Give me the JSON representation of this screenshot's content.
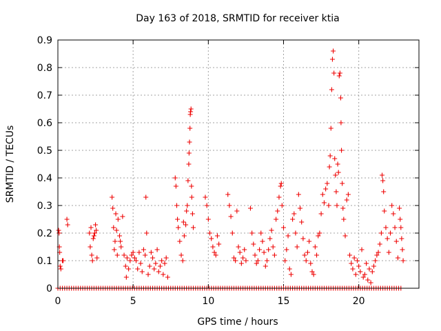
{
  "chart_data": {
    "type": "scatter",
    "title": "Day 163 of 2018, SRMTID for receiver ktia",
    "xlabel": "GPS time / hours",
    "ylabel": "SRMTID / TECUs",
    "xlim": [
      0,
      24
    ],
    "ylim": [
      0,
      0.9
    ],
    "x_ticks": [
      0,
      5,
      10,
      15,
      20
    ],
    "x_tick_labels": [
      "0",
      "5",
      "10",
      "15",
      "20"
    ],
    "y_ticks": [
      0,
      0.1,
      0.2,
      0.3,
      0.4,
      0.5,
      0.6,
      0.7,
      0.8,
      0.9
    ],
    "y_tick_labels": [
      "0",
      "0.1",
      "0.2",
      "0.3",
      "0.4",
      "0.5",
      "0.6",
      "0.7",
      "0.8",
      "0.9"
    ],
    "grid": true,
    "marker": "+",
    "color": "#ee0000",
    "series": [
      {
        "name": "SRMTID",
        "points": [
          [
            0.05,
            0.21
          ],
          [
            0.08,
            0.2
          ],
          [
            0.1,
            0.15
          ],
          [
            0.12,
            0.13
          ],
          [
            0.15,
            0.08
          ],
          [
            0.2,
            0.07
          ],
          [
            0.3,
            0.1
          ],
          [
            0.35,
            0.1
          ],
          [
            0.6,
            0.25
          ],
          [
            0.65,
            0.23
          ],
          [
            2.1,
            0.2
          ],
          [
            2.15,
            0.15
          ],
          [
            2.2,
            0.22
          ],
          [
            2.25,
            0.12
          ],
          [
            2.3,
            0.1
          ],
          [
            2.35,
            0.18
          ],
          [
            2.4,
            0.19
          ],
          [
            2.45,
            0.2
          ],
          [
            2.5,
            0.23
          ],
          [
            2.55,
            0.21
          ],
          [
            2.6,
            0.11
          ],
          [
            3.6,
            0.33
          ],
          [
            3.65,
            0.29
          ],
          [
            3.7,
            0.22
          ],
          [
            3.75,
            0.14
          ],
          [
            3.8,
            0.17
          ],
          [
            3.85,
            0.27
          ],
          [
            3.9,
            0.21
          ],
          [
            3.95,
            0.12
          ],
          [
            4.0,
            0.25
          ],
          [
            4.1,
            0.19
          ],
          [
            4.15,
            0.17
          ],
          [
            4.2,
            0.15
          ],
          [
            4.3,
            0.26
          ],
          [
            4.4,
            0.12
          ],
          [
            4.5,
            0.08
          ],
          [
            4.55,
            0.04
          ],
          [
            4.6,
            0.11
          ],
          [
            4.7,
            0.07
          ],
          [
            4.8,
            0.1
          ],
          [
            4.9,
            0.12
          ],
          [
            5.0,
            0.13
          ],
          [
            5.1,
            0.11
          ],
          [
            5.2,
            0.1
          ],
          [
            5.3,
            0.07
          ],
          [
            5.4,
            0.13
          ],
          [
            5.5,
            0.09
          ],
          [
            5.6,
            0.06
          ],
          [
            5.7,
            0.14
          ],
          [
            5.8,
            0.12
          ],
          [
            5.85,
            0.33
          ],
          [
            5.9,
            0.2
          ],
          [
            6.0,
            0.05
          ],
          [
            6.1,
            0.08
          ],
          [
            6.2,
            0.13
          ],
          [
            6.3,
            0.11
          ],
          [
            6.4,
            0.07
          ],
          [
            6.5,
            0.09
          ],
          [
            6.6,
            0.14
          ],
          [
            6.7,
            0.06
          ],
          [
            6.8,
            0.08
          ],
          [
            6.9,
            0.1
          ],
          [
            7.0,
            0.05
          ],
          [
            7.1,
            0.09
          ],
          [
            7.2,
            0.11
          ],
          [
            7.3,
            0.04
          ],
          [
            7.8,
            0.4
          ],
          [
            7.85,
            0.37
          ],
          [
            7.9,
            0.3
          ],
          [
            7.95,
            0.25
          ],
          [
            8.0,
            0.22
          ],
          [
            8.1,
            0.17
          ],
          [
            8.2,
            0.12
          ],
          [
            8.3,
            0.1
          ],
          [
            8.35,
            0.24
          ],
          [
            8.4,
            0.19
          ],
          [
            8.5,
            0.23
          ],
          [
            8.55,
            0.28
          ],
          [
            8.6,
            0.3
          ],
          [
            8.65,
            0.39
          ],
          [
            8.7,
            0.45
          ],
          [
            8.72,
            0.49
          ],
          [
            8.75,
            0.53
          ],
          [
            8.78,
            0.58
          ],
          [
            8.8,
            0.63
          ],
          [
            8.82,
            0.64
          ],
          [
            8.85,
            0.65
          ],
          [
            8.88,
            0.37
          ],
          [
            8.9,
            0.33
          ],
          [
            8.95,
            0.27
          ],
          [
            9.0,
            0.22
          ],
          [
            9.8,
            0.33
          ],
          [
            9.9,
            0.3
          ],
          [
            10.0,
            0.25
          ],
          [
            10.1,
            0.2
          ],
          [
            10.2,
            0.18
          ],
          [
            10.3,
            0.15
          ],
          [
            10.4,
            0.13
          ],
          [
            10.5,
            0.12
          ],
          [
            10.6,
            0.19
          ],
          [
            10.7,
            0.16
          ],
          [
            11.3,
            0.34
          ],
          [
            11.4,
            0.3
          ],
          [
            11.5,
            0.26
          ],
          [
            11.6,
            0.2
          ],
          [
            11.7,
            0.11
          ],
          [
            11.8,
            0.1
          ],
          [
            11.9,
            0.28
          ],
          [
            12.0,
            0.15
          ],
          [
            12.1,
            0.13
          ],
          [
            12.2,
            0.09
          ],
          [
            12.3,
            0.11
          ],
          [
            12.4,
            0.14
          ],
          [
            12.5,
            0.1
          ],
          [
            12.8,
            0.29
          ],
          [
            12.9,
            0.2
          ],
          [
            13.0,
            0.16
          ],
          [
            13.1,
            0.12
          ],
          [
            13.2,
            0.09
          ],
          [
            13.3,
            0.1
          ],
          [
            13.4,
            0.14
          ],
          [
            13.5,
            0.2
          ],
          [
            13.6,
            0.17
          ],
          [
            13.7,
            0.13
          ],
          [
            13.8,
            0.08
          ],
          [
            13.9,
            0.1
          ],
          [
            14.0,
            0.14
          ],
          [
            14.1,
            0.18
          ],
          [
            14.2,
            0.21
          ],
          [
            14.3,
            0.15
          ],
          [
            14.4,
            0.12
          ],
          [
            14.5,
            0.25
          ],
          [
            14.6,
            0.28
          ],
          [
            14.7,
            0.33
          ],
          [
            14.8,
            0.37
          ],
          [
            14.85,
            0.38
          ],
          [
            14.9,
            0.3
          ],
          [
            15.0,
            0.22
          ],
          [
            15.1,
            0.1
          ],
          [
            15.2,
            0.14
          ],
          [
            15.3,
            0.19
          ],
          [
            15.4,
            0.07
          ],
          [
            15.5,
            0.05
          ],
          [
            15.6,
            0.25
          ],
          [
            15.7,
            0.27
          ],
          [
            15.8,
            0.2
          ],
          [
            15.9,
            0.15
          ],
          [
            16.0,
            0.34
          ],
          [
            16.1,
            0.29
          ],
          [
            16.2,
            0.24
          ],
          [
            16.3,
            0.18
          ],
          [
            16.4,
            0.12
          ],
          [
            16.5,
            0.1
          ],
          [
            16.6,
            0.13
          ],
          [
            16.7,
            0.17
          ],
          [
            16.8,
            0.09
          ],
          [
            16.9,
            0.06
          ],
          [
            17.0,
            0.05
          ],
          [
            17.1,
            0.15
          ],
          [
            17.2,
            0.12
          ],
          [
            17.3,
            0.19
          ],
          [
            17.4,
            0.2
          ],
          [
            17.5,
            0.27
          ],
          [
            17.6,
            0.34
          ],
          [
            17.7,
            0.31
          ],
          [
            17.8,
            0.36
          ],
          [
            17.9,
            0.38
          ],
          [
            18.0,
            0.3
          ],
          [
            18.05,
            0.44
          ],
          [
            18.1,
            0.48
          ],
          [
            18.15,
            0.58
          ],
          [
            18.2,
            0.72
          ],
          [
            18.25,
            0.83
          ],
          [
            18.3,
            0.86
          ],
          [
            18.35,
            0.78
          ],
          [
            18.4,
            0.47
          ],
          [
            18.45,
            0.41
          ],
          [
            18.5,
            0.35
          ],
          [
            18.55,
            0.3
          ],
          [
            18.6,
            0.45
          ],
          [
            18.65,
            0.42
          ],
          [
            18.7,
            0.77
          ],
          [
            18.75,
            0.78
          ],
          [
            18.8,
            0.69
          ],
          [
            18.82,
            0.6
          ],
          [
            18.85,
            0.5
          ],
          [
            18.9,
            0.38
          ],
          [
            18.95,
            0.29
          ],
          [
            19.0,
            0.25
          ],
          [
            19.1,
            0.19
          ],
          [
            19.2,
            0.32
          ],
          [
            19.3,
            0.34
          ],
          [
            19.4,
            0.12
          ],
          [
            19.5,
            0.09
          ],
          [
            19.6,
            0.07
          ],
          [
            19.7,
            0.11
          ],
          [
            19.8,
            0.05
          ],
          [
            19.9,
            0.1
          ],
          [
            20.0,
            0.08
          ],
          [
            20.1,
            0.06
          ],
          [
            20.2,
            0.14
          ],
          [
            20.3,
            0.04
          ],
          [
            20.4,
            0.05
          ],
          [
            20.5,
            0.09
          ],
          [
            20.6,
            0.03
          ],
          [
            20.7,
            0.07
          ],
          [
            20.8,
            0.02
          ],
          [
            20.9,
            0.06
          ],
          [
            21.0,
            0.08
          ],
          [
            21.1,
            0.1
          ],
          [
            21.2,
            0.12
          ],
          [
            21.3,
            0.13
          ],
          [
            21.4,
            0.16
          ],
          [
            21.5,
            0.2
          ],
          [
            21.55,
            0.41
          ],
          [
            21.6,
            0.39
          ],
          [
            21.65,
            0.35
          ],
          [
            21.7,
            0.28
          ],
          [
            21.8,
            0.22
          ],
          [
            21.9,
            0.18
          ],
          [
            22.0,
            0.13
          ],
          [
            22.1,
            0.2
          ],
          [
            22.2,
            0.3
          ],
          [
            22.3,
            0.27
          ],
          [
            22.4,
            0.22
          ],
          [
            22.5,
            0.17
          ],
          [
            22.6,
            0.11
          ],
          [
            22.7,
            0.29
          ],
          [
            22.75,
            0.25
          ],
          [
            22.8,
            0.22
          ],
          [
            22.85,
            0.18
          ],
          [
            22.9,
            0.14
          ],
          [
            22.95,
            0.1
          ]
        ],
        "zero_baseline": {
          "y": 0,
          "x_start": 0.0,
          "x_end": 22.9,
          "x_step": 0.15
        }
      }
    ]
  }
}
